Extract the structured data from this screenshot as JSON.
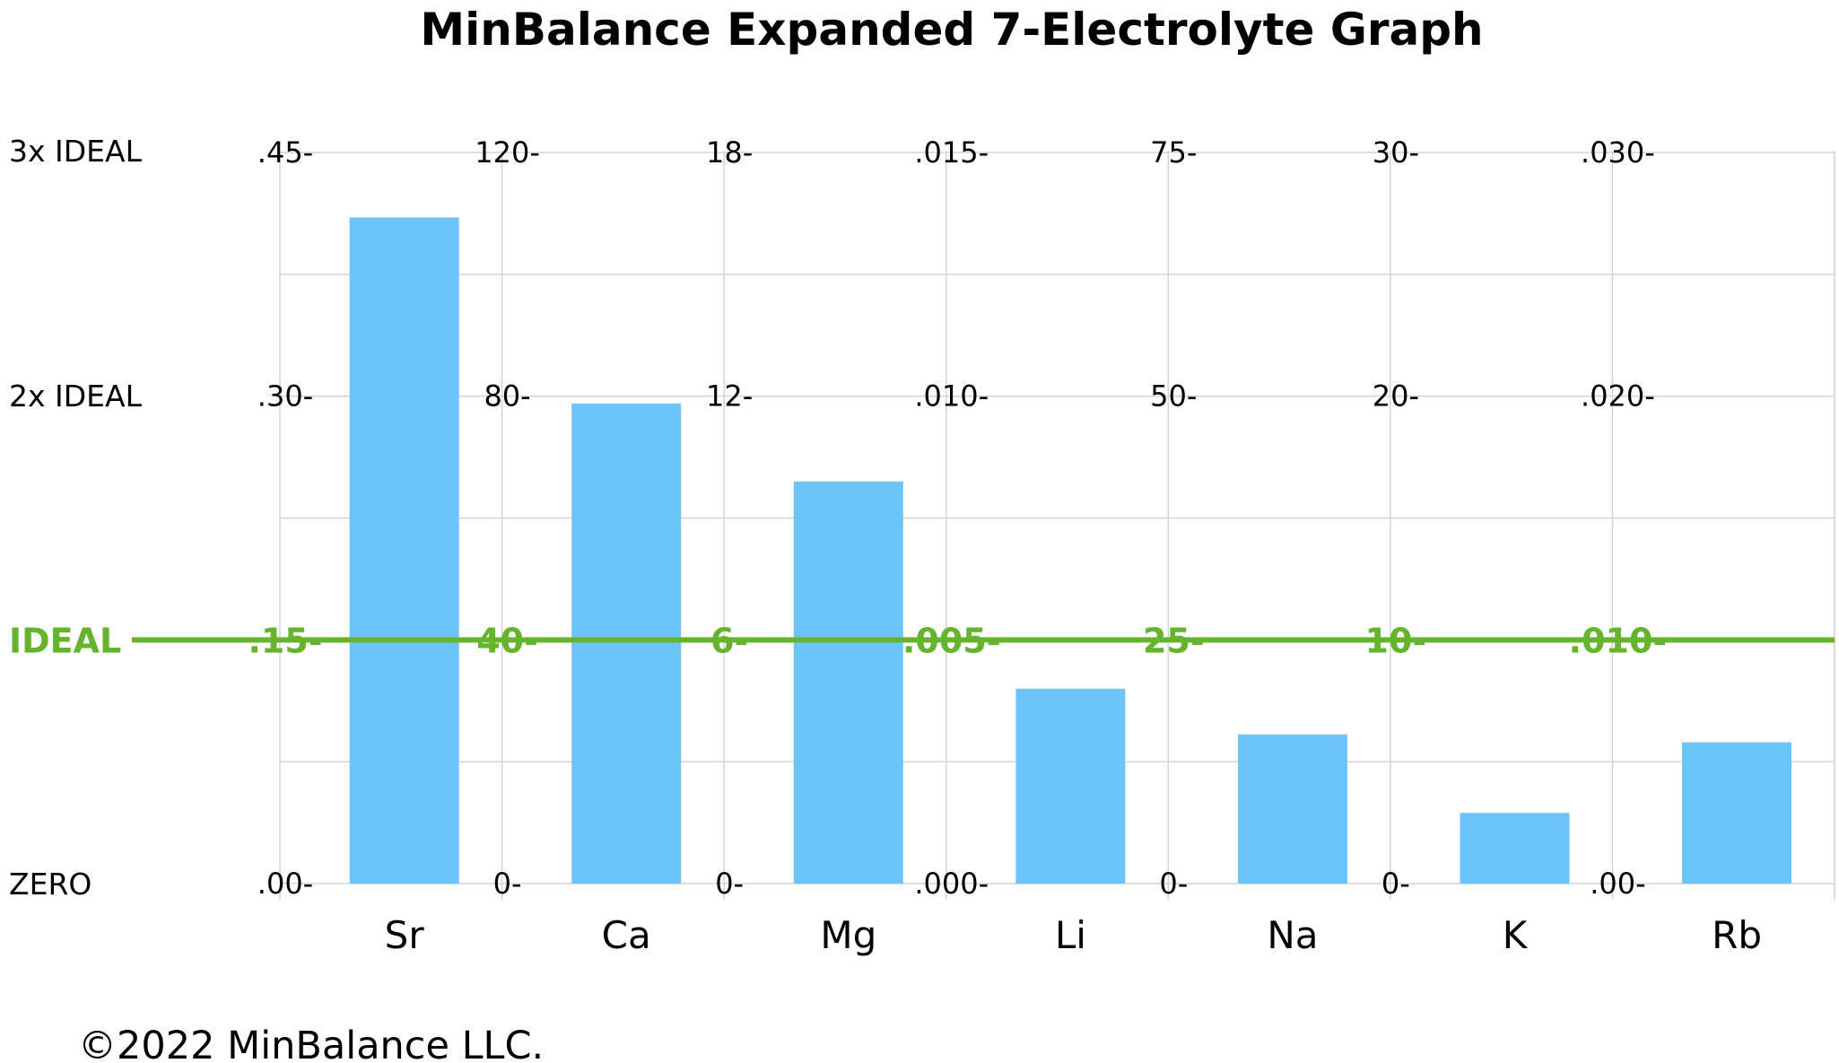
{
  "chart_data": {
    "type": "bar",
    "title": "MinBalance Expanded 7-Electrolyte Graph",
    "categories": [
      "Sr",
      "Ca",
      "Mg",
      "Li",
      "Na",
      "K",
      "Rb"
    ],
    "row_labels": {
      "top": "3x IDEAL",
      "middle": "2x IDEAL",
      "ideal": "IDEAL",
      "zero": "ZERO"
    },
    "axes": [
      {
        "category": "Sr",
        "ticks": [
          ".00-",
          ".15-",
          ".30-",
          ".45-"
        ],
        "ylim": [
          0,
          0.45
        ]
      },
      {
        "category": "Ca",
        "ticks": [
          "0-",
          "40-",
          "80-",
          "120-"
        ],
        "ylim": [
          0,
          120
        ]
      },
      {
        "category": "Mg",
        "ticks": [
          "0-",
          "6-",
          "12-",
          "18-"
        ],
        "ylim": [
          0,
          18
        ]
      },
      {
        "category": "Li",
        "ticks": [
          ".000-",
          ".005-",
          ".010-",
          ".015-"
        ],
        "ylim": [
          0,
          0.015
        ]
      },
      {
        "category": "Na",
        "ticks": [
          "0-",
          "25-",
          "50-",
          "75-"
        ],
        "ylim": [
          0,
          75
        ]
      },
      {
        "category": "K",
        "ticks": [
          "0-",
          "10-",
          "20-",
          "30-"
        ],
        "ylim": [
          0,
          30
        ]
      },
      {
        "category": "Rb",
        "ticks": [
          ".00-",
          ".010-",
          ".020-",
          ".030-"
        ],
        "ylim": [
          0,
          0.03
        ]
      }
    ],
    "values": [
      0.41,
      78.8,
      9.9,
      0.004,
      15.3,
      2.9,
      0.0058
    ],
    "grid": true,
    "colors": {
      "bar": "#6cc4fa",
      "ideal_line": "#66b32e",
      "grid": "#d4d4d4"
    }
  },
  "footer": {
    "copyright": "©2022 MinBalance LLC."
  }
}
